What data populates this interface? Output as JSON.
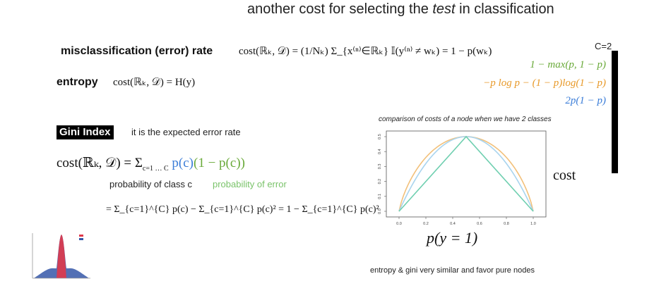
{
  "title": {
    "prefix": "another cost for selecting the ",
    "emph": "test",
    "suffix": " in classification"
  },
  "misclassification": {
    "label": "misclassification (error) rate",
    "formula": "cost(ℝₖ, 𝒟) = (1/Nₖ) Σ_{x⁽ⁿ⁾∈ℝₖ} 𝕀(y⁽ⁿ⁾ ≠ wₖ) = 1 − p(wₖ)"
  },
  "entropy": {
    "label": "entropy",
    "formula": "cost(ℝₖ, 𝒟) = H(y)"
  },
  "binary_case": {
    "label": "C=2",
    "misclassification": "1 − max(p, 1 − p)",
    "entropy": "−p log p − (1 − p)log(1 − p)",
    "gini": "2p(1 − p)"
  },
  "gini": {
    "label": "Gini Index",
    "description": "it is the expected error rate",
    "formula_prefix": "cost(ℝₖ, 𝒟) = Σ",
    "formula_bounds": "c=1 … C",
    "formula_p": "p(c)",
    "formula_err": "(1 − p(c))",
    "annotation_prob": "probability of class c",
    "annotation_err": "probability of error",
    "expansion": "= Σ_{c=1}^{C} p(c) − Σ_{c=1}^{C} p(c)² = 1 − Σ_{c=1}^{C} p(c)²"
  },
  "chart_caption": "comparison of costs of a node when we have 2 classes",
  "cost_label": "cost",
  "x_axis_label": "p(y = 1)",
  "footer_note": "entropy & gini very similar and favor pure nodes",
  "colors": {
    "misclassification": "#6fcfb0",
    "entropy": "#f2c07a",
    "gini": "#a9d4ee"
  },
  "chart_data": {
    "type": "line",
    "x_ticks": [
      "0.0",
      "0.2",
      "0.4",
      "0.6",
      "0.8",
      "1.0"
    ],
    "y_ticks": [
      "0.0",
      "0.1",
      "0.2",
      "0.3",
      "0.4",
      "0.5"
    ],
    "xlim": [
      0,
      1
    ],
    "ylim": [
      0,
      0.5
    ],
    "series": [
      {
        "name": "Entropy",
        "key": "entropy",
        "x": [
          0,
          0.1,
          0.2,
          0.3,
          0.4,
          0.5,
          0.6,
          0.7,
          0.8,
          0.9,
          1.0
        ],
        "y": [
          0,
          0.234,
          0.361,
          0.441,
          0.485,
          0.5,
          0.485,
          0.441,
          0.361,
          0.234,
          0
        ]
      },
      {
        "name": "Gini index",
        "key": "gini",
        "x": [
          0,
          0.1,
          0.2,
          0.3,
          0.4,
          0.5,
          0.6,
          0.7,
          0.8,
          0.9,
          1.0
        ],
        "y": [
          0,
          0.18,
          0.32,
          0.42,
          0.48,
          0.5,
          0.48,
          0.42,
          0.32,
          0.18,
          0
        ]
      },
      {
        "name": "Misclassification error",
        "key": "misclassification",
        "x": [
          0,
          0.5,
          1.0
        ],
        "y": [
          0,
          0.5,
          0
        ]
      }
    ]
  }
}
